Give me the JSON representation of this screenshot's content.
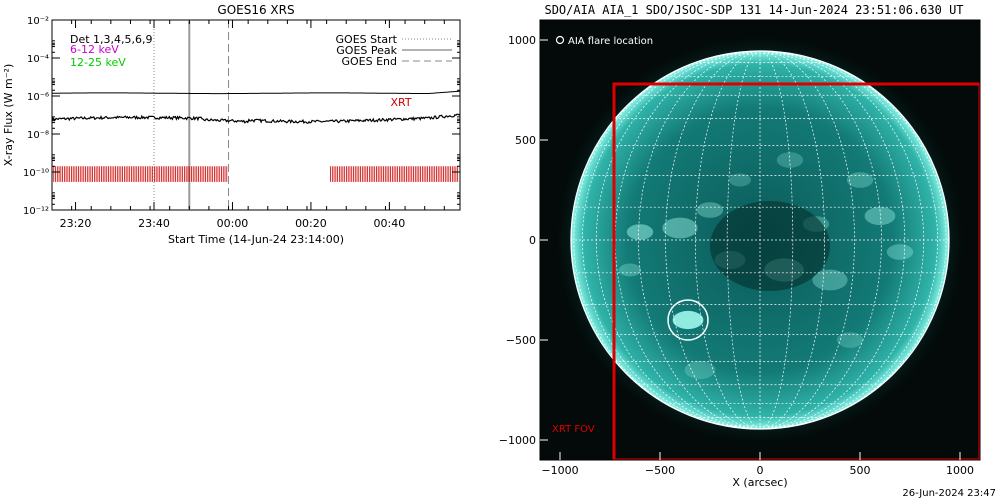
{
  "chart_data": [
    {
      "type": "line",
      "title": "GOES16 XRS",
      "xlabel": "Start Time (14-Jun-24 23:14:00)",
      "ylabel": "X-ray Flux (W m⁻²)",
      "y_scale": "log",
      "ylim": [
        1e-12,
        0.01
      ],
      "xlim_minutes_from_start": [
        0,
        104
      ],
      "x_ticks": [
        "23:20",
        "23:40",
        "00:00",
        "00:20",
        "00:40"
      ],
      "y_ticks": [
        "10⁻¹²",
        "10⁻¹⁰",
        "10⁻⁸",
        "10⁻⁶",
        "10⁻⁴",
        "10⁻²"
      ],
      "channel_labels": [
        {
          "text": "Det 1,3,4,5,6,9",
          "color": "#000000"
        },
        {
          "text": "6-12 keV",
          "color": "#cc00cc"
        },
        {
          "text": "12-25 keV",
          "color": "#00cc00"
        }
      ],
      "legend": {
        "placement": "top-right",
        "entries": [
          {
            "label": "GOES Start",
            "style": "dotted"
          },
          {
            "label": "GOES Peak",
            "style": "solid"
          },
          {
            "label": "GOES End",
            "style": "dashed"
          }
        ]
      },
      "series": [
        {
          "name": "long",
          "color": "#000000",
          "approx_value": 1.4e-06
        },
        {
          "name": "short",
          "color": "#000000",
          "approx_value": 6e-08
        }
      ],
      "event_lines": [
        {
          "label": "GOES Start",
          "x_minutes": 26,
          "style": "dotted"
        },
        {
          "label": "GOES Peak",
          "x_minutes": 35,
          "style": "solid"
        },
        {
          "label": "GOES End",
          "x_minutes": 45,
          "style": "dashed"
        }
      ],
      "xrt_label": "XRT",
      "xrt_color": "#cc0000",
      "xrt_coverage_minutes": [
        [
          0,
          45
        ],
        [
          71,
          104
        ]
      ]
    },
    {
      "type": "image",
      "title": "SDO/AIA AIA_1 SDO/JSOC-SDP 131 14-Jun-2024 23:51:06.630 UT",
      "xlabel": "X (arcsec)",
      "ylabel": "",
      "xlim": [
        -1100,
        1100
      ],
      "ylim": [
        -1100,
        1100
      ],
      "x_ticks": [
        "−1000",
        "−500",
        "0",
        "500",
        "1000"
      ],
      "y_ticks": [
        "1000",
        "500",
        "0",
        "−500",
        "−1000"
      ],
      "flare_legend": "AIA flare location",
      "flare_location_arcsec": [
        -360,
        -400
      ],
      "solar_radius_arcsec": 945,
      "xrt_fov": {
        "label": "XRT FOV",
        "x_range": [
          -730,
          1100
        ],
        "y_range": [
          -1100,
          780
        ],
        "color": "#dd0000"
      },
      "footer_timestamp": "26-Jun-2024 23:47"
    }
  ]
}
